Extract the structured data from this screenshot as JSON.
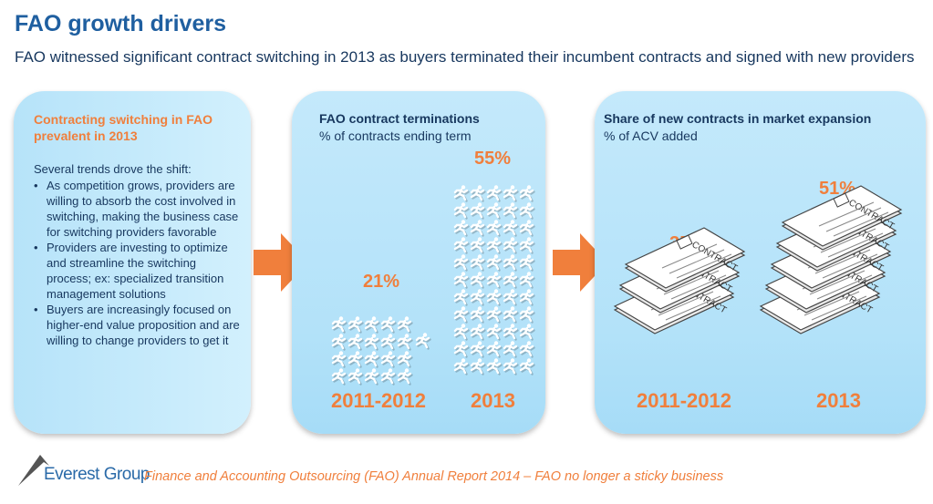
{
  "title": "FAO growth drivers",
  "subtitle": "FAO witnessed significant contract switching in 2013 as buyers terminated their incumbent contracts and signed with new providers",
  "left_panel": {
    "heading": "Contracting switching in FAO prevalent in 2013",
    "intro": "Several trends drove the shift:",
    "bullets": [
      "As competition grows, providers are willing to absorb the cost involved in switching, making the business case for switching providers favorable",
      "Providers are investing to optimize and streamline the switching process; ex: specialized transition management solutions",
      "Buyers are increasingly focused on higher-end value proposition and are willing to change providers to get it"
    ]
  },
  "chart_data": [
    {
      "type": "pictogram",
      "title": "FAO contract terminations",
      "subtitle": "% of contracts ending term",
      "categories": [
        "2011-2012",
        "2013"
      ],
      "values": [
        21,
        55
      ],
      "labels": [
        "21%",
        "55%"
      ],
      "icon": "running-person-icon",
      "color": "#f07f3c"
    },
    {
      "type": "pictogram",
      "title": "Share of new contracts in market expansion",
      "subtitle": "% of ACV added",
      "categories": [
        "2011-2012",
        "2013"
      ],
      "values": [
        35,
        51
      ],
      "labels": [
        "35%",
        "51%"
      ],
      "icon": "contract-document-icon",
      "icon_text": "CONTRACT",
      "color": "#f07f3c"
    }
  ],
  "footer": {
    "brand": "Everest Group",
    "source": "Finance and Accounting Outsourcing (FAO) Annual Report 2014 – FAO no longer a sticky business"
  },
  "colors": {
    "title": "#1f5fa0",
    "accent": "#f07f3c",
    "panel": "#b3e2f9",
    "text": "#17375e"
  }
}
